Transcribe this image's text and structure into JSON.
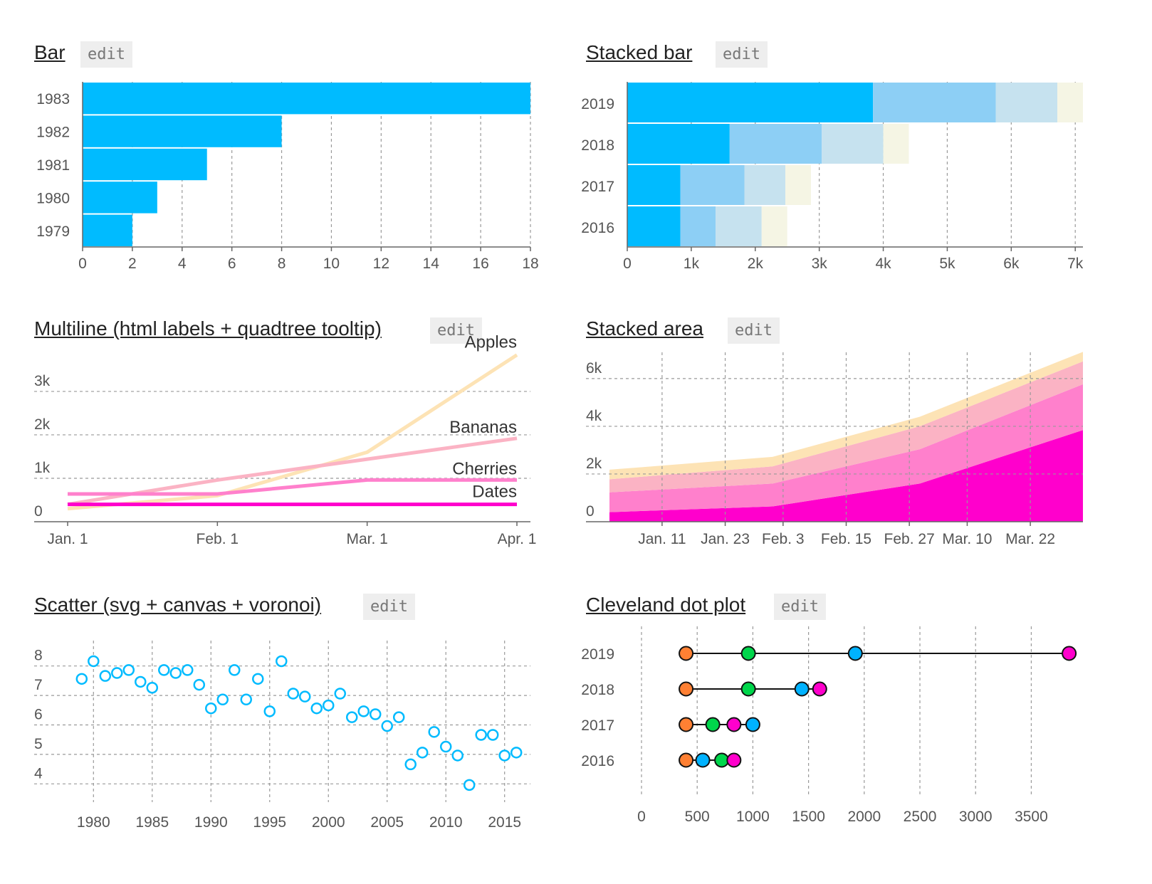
{
  "edit_label": "edit",
  "chart_data": [
    {
      "id": "bar",
      "type": "bar",
      "title": "Bar",
      "orientation": "horizontal",
      "categories": [
        "1983",
        "1982",
        "1981",
        "1980",
        "1979"
      ],
      "values": [
        18,
        8,
        5,
        3,
        2
      ],
      "xlim": [
        0,
        18
      ],
      "xticks": [
        0,
        2,
        4,
        6,
        8,
        10,
        12,
        14,
        16,
        18
      ],
      "color": "#00bbff",
      "grid": true
    },
    {
      "id": "stacked-bar",
      "type": "bar",
      "title": "Stacked bar",
      "orientation": "horizontal",
      "stacked": true,
      "categories": [
        "2019",
        "2018",
        "2017",
        "2016"
      ],
      "series": [
        {
          "values": [
            3840,
            1600,
            830,
            830
          ],
          "color": "#00bbff"
        },
        {
          "values": [
            1920,
            1440,
            1000,
            550
          ],
          "color": "#8dcff5"
        },
        {
          "values": [
            960,
            960,
            640,
            720
          ],
          "color": "#c6e2ef"
        },
        {
          "values": [
            400,
            400,
            400,
            400
          ],
          "color": "#f5f5e4"
        }
      ],
      "xlim": [
        0,
        7120
      ],
      "xticks": [
        0,
        1000,
        2000,
        3000,
        4000,
        5000,
        6000,
        7000
      ],
      "xtick_labels": [
        "0",
        "1k",
        "2k",
        "3k",
        "4k",
        "5k",
        "6k",
        "7k"
      ],
      "grid": true
    },
    {
      "id": "multiline",
      "type": "line",
      "title": "Multiline (html labels + quadtree tooltip)",
      "x": [
        "Jan. 1",
        "Feb. 1",
        "Mar. 1",
        "Apr. 1"
      ],
      "series": [
        {
          "name": "Apples",
          "values": [
            300,
            600,
            1600,
            3840
          ],
          "color": "#fde3b5"
        },
        {
          "name": "Bananas",
          "values": [
            400,
            960,
            1440,
            1920
          ],
          "color": "#fbb3c4"
        },
        {
          "name": "Cherries",
          "values": [
            640,
            640,
            960,
            960
          ],
          "color": "#ff80cc"
        },
        {
          "name": "Dates",
          "values": [
            400,
            400,
            400,
            400
          ],
          "color": "#ff00cc"
        }
      ],
      "ylim": [
        0,
        3900
      ],
      "yticks": [
        0,
        1000,
        2000,
        3000
      ],
      "ytick_labels": [
        "0",
        "1k",
        "2k",
        "3k"
      ],
      "grid": true
    },
    {
      "id": "stacked-area",
      "type": "area",
      "title": "Stacked area",
      "stacked": true,
      "x": [
        "2019-01-01",
        "2019-02-01",
        "2019-03-01",
        "2019-04-01"
      ],
      "xtick_labels": [
        "Jan. 11",
        "Jan. 23",
        "Feb. 3",
        "Feb. 15",
        "Feb. 27",
        "Mar. 10",
        "Mar. 22"
      ],
      "series": [
        {
          "values": [
            400,
            640,
            1600,
            3840
          ],
          "color": "#ff00cc"
        },
        {
          "values": [
            830,
            960,
            1440,
            1920
          ],
          "color": "#ff80cc"
        },
        {
          "values": [
            550,
            720,
            960,
            960
          ],
          "color": "#fbb3c4"
        },
        {
          "values": [
            400,
            400,
            400,
            400
          ],
          "color": "#fde3b5"
        }
      ],
      "ylim": [
        0,
        7100
      ],
      "yticks": [
        0,
        2000,
        4000,
        6000
      ],
      "ytick_labels": [
        "0",
        "2k",
        "4k",
        "6k"
      ],
      "grid": true
    },
    {
      "id": "scatter",
      "type": "scatter",
      "title": "Scatter (svg + canvas + voronoi)",
      "x": [
        1979,
        1980,
        1981,
        1982,
        1983,
        1984,
        1985,
        1986,
        1987,
        1988,
        1989,
        1990,
        1991,
        1992,
        1993,
        1994,
        1995,
        1996,
        1997,
        1998,
        1999,
        2000,
        2001,
        2002,
        2003,
        2004,
        2005,
        2006,
        2007,
        2008,
        2009,
        2010,
        2011,
        2012,
        2013,
        2014,
        2015,
        2016
      ],
      "y": [
        7.2,
        7.8,
        7.3,
        7.4,
        7.5,
        7.1,
        6.9,
        7.5,
        7.4,
        7.5,
        7.0,
        6.2,
        6.5,
        7.5,
        6.5,
        7.2,
        6.1,
        7.8,
        6.7,
        6.6,
        6.2,
        6.3,
        6.7,
        5.9,
        6.1,
        6.0,
        5.6,
        5.9,
        4.3,
        4.7,
        5.4,
        4.9,
        4.6,
        3.6,
        5.3,
        5.3,
        4.6,
        4.7
      ],
      "xlim": [
        1977.8,
        2017.2
      ],
      "xticks": [
        1980,
        1985,
        1990,
        1995,
        2000,
        2005,
        2010,
        2015
      ],
      "ylim": [
        3.5,
        8.5
      ],
      "yticks": [
        4,
        5,
        6,
        7,
        8
      ],
      "color": "#00bbff",
      "grid": true
    },
    {
      "id": "cleveland",
      "type": "scatter",
      "title": "Cleveland dot plot",
      "categories": [
        "2019",
        "2018",
        "2017",
        "2016"
      ],
      "series": [
        {
          "values": [
            400,
            400,
            400,
            400
          ],
          "color": "#ff8033"
        },
        {
          "values": [
            960,
            960,
            640,
            720
          ],
          "color": "#00d64b"
        },
        {
          "values": [
            1920,
            1440,
            1000,
            550
          ],
          "color": "#00b2ff"
        },
        {
          "values": [
            3840,
            1600,
            830,
            830
          ],
          "color": "#ff00cc"
        }
      ],
      "xlim": [
        0,
        3900
      ],
      "xticks": [
        0,
        500,
        1000,
        1500,
        2000,
        2500,
        3000,
        3500
      ],
      "grid": true
    }
  ]
}
